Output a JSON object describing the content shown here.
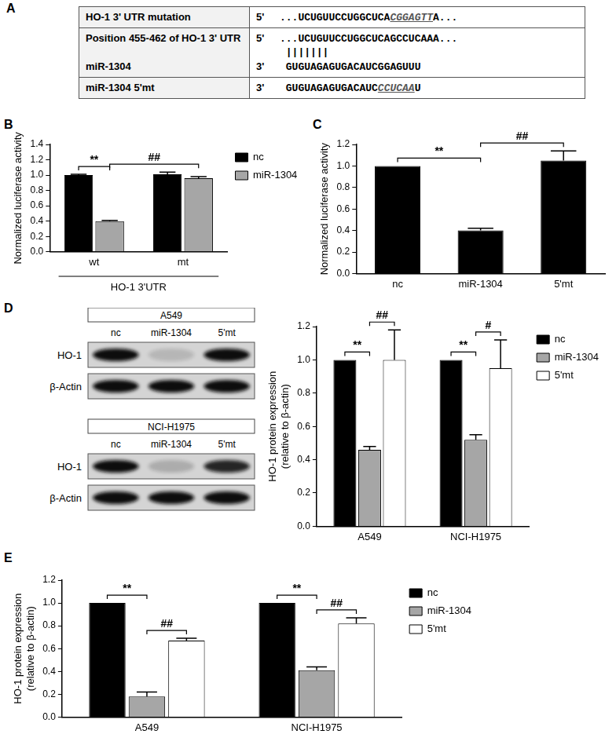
{
  "table": {
    "panel": "A",
    "rows": [
      {
        "lines": [
          {
            "label": "HO-1 3' UTR mutation",
            "strand": "5'",
            "segments": [
              {
                "text": "...UCUGUUCCUGGCUCA"
              },
              {
                "text": "CGGAGTT",
                "mutated": true
              },
              {
                "text": "A..."
              }
            ]
          }
        ]
      },
      {
        "lines": [
          {
            "label": "Position 455-462 of HO-1 3' UTR",
            "strand": "5'",
            "segments": [
              {
                "text": "...UCUGUUCCUGGCUCAGCCUCAAA..."
              }
            ]
          }
        ],
        "pairing": "|||||||",
        "partner": {
          "label": "miR-1304",
          "strand": "3'",
          "segments": [
            {
              "text": "GUGUAGAGUGACAUCGGAGUUU"
            }
          ]
        }
      },
      {
        "lines": [
          {
            "label": "miR-1304 5'mt",
            "strand": "3'",
            "segments": [
              {
                "text": "GUGUAGAGUGACAUC"
              },
              {
                "text": "CCUCAA",
                "mutated": true
              },
              {
                "text": "U"
              }
            ]
          }
        ],
        "aligned_to_partner": true
      }
    ]
  },
  "blots": [
    {
      "title": "A549",
      "lanes": [
        "nc",
        "miR-1304",
        "5'mt"
      ],
      "rows": [
        "HO-1",
        "β-Actin"
      ]
    },
    {
      "title": "NCI-H1975",
      "lanes": [
        "nc",
        "miR-1304",
        "5'mt"
      ],
      "rows": [
        "HO-1",
        "β-Actin"
      ]
    }
  ],
  "chart_data": [
    {
      "panel": "B",
      "type": "bar",
      "categories": [
        "wt",
        "mt"
      ],
      "x_label": "HO-1 3'UTR",
      "y_label": "Normalized luciferase activity",
      "series": [
        {
          "name": "nc",
          "color": "#000000",
          "values": [
            1.0,
            1.01
          ],
          "errors": [
            0.01,
            0.03
          ]
        },
        {
          "name": "miR-1304",
          "color": "#a6a6a6",
          "values": [
            0.4,
            0.96
          ],
          "errors": [
            0.01,
            0.02
          ]
        }
      ],
      "ylim": [
        0,
        1.4
      ],
      "yticks": [
        {
          "value": 0,
          "label": "0.0"
        },
        0.2,
        0.4,
        0.6,
        0.8,
        {
          "value": 1,
          "label": "1.0"
        },
        1.2,
        1.4
      ],
      "grid": false,
      "legend": "upper right",
      "annotations": [
        {
          "text": "**",
          "from": [
            0,
            0
          ],
          "to": [
            1,
            0
          ]
        },
        {
          "text": "##",
          "from": [
            1,
            0
          ],
          "to": [
            1,
            1
          ]
        }
      ]
    },
    {
      "panel": "C",
      "type": "bar",
      "categories": [
        "nc",
        "miR-1304",
        "5'mt"
      ],
      "y_label": "Normalized luciferase activity",
      "series": [
        {
          "color": "#000000",
          "values": [
            1.0,
            0.4,
            1.05
          ],
          "errors": [
            0,
            0.02,
            0.09
          ]
        }
      ],
      "ylim": [
        0,
        1.2
      ],
      "yticks": [
        {
          "value": 0,
          "label": "0.0"
        },
        0.2,
        0.4,
        0.6,
        0.8,
        {
          "value": 1,
          "label": "1.0"
        },
        1.2
      ],
      "grid": false,
      "annotations": [
        {
          "text": "**",
          "from": [
            0,
            0
          ],
          "to": [
            0,
            1
          ]
        },
        {
          "text": "##",
          "from": [
            0,
            1
          ],
          "to": [
            0,
            2
          ]
        }
      ]
    },
    {
      "panel": "D",
      "type": "bar",
      "categories": [
        "A549",
        "NCI-H1975"
      ],
      "y_label": [
        "HO-1 protein expression",
        "(relative to β-actin)"
      ],
      "series": [
        {
          "name": "nc",
          "color": "#000000",
          "values": [
            1.0,
            1.0
          ],
          "errors": [
            0,
            0
          ]
        },
        {
          "name": "miR-1304",
          "color": "#a6a6a6",
          "values": [
            0.46,
            0.52
          ],
          "errors": [
            0.02,
            0.03
          ]
        },
        {
          "name": "5'mt",
          "color": "#ffffff",
          "values": [
            1.0,
            0.95
          ],
          "errors": [
            0.18,
            0.17
          ]
        }
      ],
      "ylim": [
        0,
        1.2
      ],
      "yticks": [
        {
          "value": 0,
          "label": "0.0"
        },
        0.2,
        0.4,
        0.6,
        0.8,
        {
          "value": 1,
          "label": "1.0"
        },
        1.2
      ],
      "grid": false,
      "legend": "upper right",
      "annotations": [
        {
          "text": "**",
          "from": [
            0,
            0
          ],
          "to": [
            1,
            0
          ]
        },
        {
          "text": "##",
          "from": [
            1,
            0
          ],
          "to": [
            2,
            0
          ]
        },
        {
          "text": "**",
          "from": [
            0,
            1
          ],
          "to": [
            1,
            1
          ]
        },
        {
          "text": "#",
          "from": [
            1,
            1
          ],
          "to": [
            2,
            1
          ]
        }
      ]
    },
    {
      "panel": "E",
      "type": "bar",
      "categories": [
        "A549",
        "NCI-H1975"
      ],
      "y_label": [
        "HO-1 protein expression",
        "(relative to β-actin)"
      ],
      "series": [
        {
          "name": "nc",
          "color": "#000000",
          "values": [
            1.0,
            1.0
          ],
          "errors": [
            0,
            0
          ]
        },
        {
          "name": "miR-1304",
          "color": "#a6a6a6",
          "values": [
            0.18,
            0.41
          ],
          "errors": [
            0.04,
            0.03
          ]
        },
        {
          "name": "5'mt",
          "color": "#ffffff",
          "values": [
            0.67,
            0.82
          ],
          "errors": [
            0.02,
            0.05
          ]
        }
      ],
      "ylim": [
        0,
        1.2
      ],
      "yticks": [
        {
          "value": 0,
          "label": "0.0"
        },
        0.2,
        0.4,
        0.6,
        0.8,
        {
          "value": 1,
          "label": "1.0"
        },
        1.2
      ],
      "grid": false,
      "legend": "upper right",
      "annotations": [
        {
          "text": "**",
          "from": [
            0,
            0
          ],
          "to": [
            1,
            0
          ]
        },
        {
          "text": "##",
          "from": [
            1,
            0
          ],
          "to": [
            2,
            0
          ]
        },
        {
          "text": "**",
          "from": [
            0,
            1
          ],
          "to": [
            1,
            1
          ]
        },
        {
          "text": "##",
          "from": [
            1,
            1
          ],
          "to": [
            2,
            1
          ]
        }
      ]
    }
  ]
}
